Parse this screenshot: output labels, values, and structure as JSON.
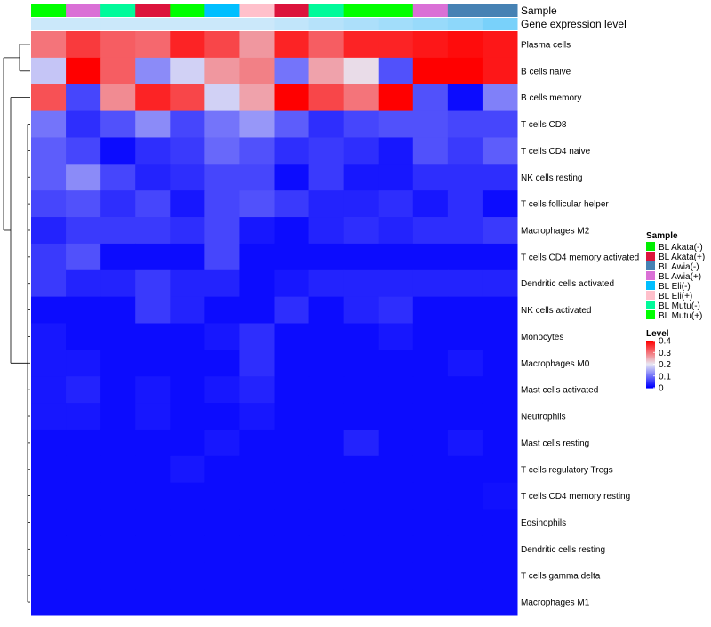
{
  "chart_data": {
    "type": "heatmap",
    "title": "",
    "annotation_labels": {
      "sample": "Sample",
      "gene_expression": "Gene expression level"
    },
    "rows": [
      "Plasma cells",
      "B cells naive",
      "B cells memory",
      "T cells CD8",
      "T cells CD4 naive",
      "NK cells resting",
      "T cells follicular helper",
      "Macrophages M2",
      "T cells CD4 memory activated",
      "Dendritic cells activated",
      "NK cells activated",
      "Monocytes",
      "Macrophages M0",
      "Mast cells activated",
      "Neutrophils",
      "Mast cells resting",
      "T cells regulatory  Tregs",
      "T cells CD4 memory resting",
      "Eosinophils",
      "Dendritic cells resting",
      "T cells gamma delta",
      "Macrophages M1"
    ],
    "columns": [
      "BL Mutu(+)",
      "BL Awia(+)",
      "BL Mutu(-)",
      "BL Akata(+)",
      "BL Mutu(+)",
      "BL Eli(-)",
      "BL Eli(+)",
      "BL Akata(+)",
      "BL Mutu(-)",
      "BL Mutu(+)",
      "BL Mutu(+)",
      "BL Awia(+)",
      "BL Awia(-)",
      "BL Awia(-)"
    ],
    "expression_levels": [
      0.04,
      0.04,
      0.04,
      0.04,
      0.04,
      0.04,
      0.04,
      0.05,
      0.06,
      0.07,
      0.08,
      0.09,
      0.1,
      0.12
    ],
    "values": [
      [
        0.3,
        0.35,
        0.32,
        0.31,
        0.37,
        0.34,
        0.27,
        0.37,
        0.32,
        0.37,
        0.37,
        0.38,
        0.39,
        0.38
      ],
      [
        0.17,
        0.4,
        0.32,
        0.12,
        0.18,
        0.27,
        0.29,
        0.1,
        0.26,
        0.21,
        0.07,
        0.4,
        0.4,
        0.38
      ],
      [
        0.33,
        0.06,
        0.28,
        0.37,
        0.34,
        0.18,
        0.26,
        0.4,
        0.34,
        0.3,
        0.4,
        0.07,
        0.01,
        0.11
      ],
      [
        0.1,
        0.04,
        0.07,
        0.12,
        0.06,
        0.1,
        0.13,
        0.08,
        0.04,
        0.06,
        0.07,
        0.07,
        0.06,
        0.06
      ],
      [
        0.08,
        0.06,
        0.01,
        0.04,
        0.05,
        0.09,
        0.07,
        0.04,
        0.05,
        0.04,
        0.02,
        0.07,
        0.05,
        0.08
      ],
      [
        0.08,
        0.12,
        0.06,
        0.03,
        0.04,
        0.06,
        0.06,
        0.01,
        0.05,
        0.02,
        0.02,
        0.04,
        0.04,
        0.04
      ],
      [
        0.06,
        0.07,
        0.04,
        0.06,
        0.02,
        0.06,
        0.07,
        0.05,
        0.03,
        0.03,
        0.04,
        0.02,
        0.04,
        0.01
      ],
      [
        0.03,
        0.05,
        0.05,
        0.05,
        0.04,
        0.06,
        0.02,
        0.01,
        0.03,
        0.04,
        0.03,
        0.04,
        0.04,
        0.05
      ],
      [
        0.05,
        0.07,
        0.01,
        0.01,
        0.01,
        0.06,
        0.01,
        0.01,
        0.01,
        0.01,
        0.01,
        0.01,
        0.01,
        0.01
      ],
      [
        0.05,
        0.03,
        0.03,
        0.05,
        0.03,
        0.03,
        0.01,
        0.02,
        0.03,
        0.03,
        0.03,
        0.03,
        0.03,
        0.03
      ],
      [
        0.01,
        0.01,
        0.01,
        0.05,
        0.03,
        0.01,
        0.01,
        0.04,
        0.01,
        0.03,
        0.04,
        0.01,
        0.01,
        0.01
      ],
      [
        0.02,
        0.01,
        0.01,
        0.01,
        0.01,
        0.02,
        0.04,
        0.01,
        0.01,
        0.01,
        0.02,
        0.01,
        0.01,
        0.01
      ],
      [
        0.02,
        0.02,
        0.01,
        0.01,
        0.01,
        0.01,
        0.04,
        0.01,
        0.01,
        0.01,
        0.01,
        0.01,
        0.02,
        0.01
      ],
      [
        0.02,
        0.03,
        0.01,
        0.02,
        0.01,
        0.02,
        0.03,
        0.01,
        0.01,
        0.01,
        0.01,
        0.01,
        0.01,
        0.01
      ],
      [
        0.02,
        0.02,
        0.01,
        0.02,
        0.01,
        0.01,
        0.02,
        0.01,
        0.01,
        0.01,
        0.01,
        0.01,
        0.01,
        0.01
      ],
      [
        0.01,
        0.01,
        0.01,
        0.01,
        0.01,
        0.02,
        0.01,
        0.01,
        0.01,
        0.03,
        0.01,
        0.01,
        0.02,
        0.01
      ],
      [
        0.01,
        0.01,
        0.01,
        0.01,
        0.02,
        0.01,
        0.01,
        0.01,
        0.01,
        0.01,
        0.01,
        0.01,
        0.01,
        0.01
      ],
      [
        0.01,
        0.01,
        0.01,
        0.01,
        0.01,
        0.01,
        0.01,
        0.01,
        0.01,
        0.01,
        0.01,
        0.01,
        0.01,
        0.015
      ],
      [
        0.01,
        0.01,
        0.01,
        0.01,
        0.01,
        0.01,
        0.01,
        0.01,
        0.01,
        0.01,
        0.01,
        0.01,
        0.01,
        0.01
      ],
      [
        0.01,
        0.01,
        0.01,
        0.01,
        0.01,
        0.01,
        0.01,
        0.01,
        0.01,
        0.01,
        0.01,
        0.01,
        0.01,
        0.01
      ],
      [
        0.01,
        0.01,
        0.01,
        0.01,
        0.01,
        0.01,
        0.01,
        0.01,
        0.01,
        0.01,
        0.01,
        0.01,
        0.01,
        0.01
      ],
      [
        0.01,
        0.01,
        0.01,
        0.01,
        0.01,
        0.01,
        0.01,
        0.01,
        0.01,
        0.01,
        0.01,
        0.01,
        0.01,
        0.01
      ]
    ],
    "color_scale": {
      "min": 0,
      "max": 0.4,
      "low_color": "#0000ff",
      "mid_color": "#e8e8f4",
      "high_color": "#ff0000",
      "mid_value": 0.2
    },
    "legend_sample": {
      "title": "Sample",
      "entries": [
        {
          "label": "BL Akata(-)",
          "color": "#00ee00"
        },
        {
          "label": "BL Akata(+)",
          "color": "#dc143c"
        },
        {
          "label": "BL Awia(-)",
          "color": "#4682b4"
        },
        {
          "label": "BL Awia(+)",
          "color": "#da70d6"
        },
        {
          "label": "BL Eli(-)",
          "color": "#00bfff"
        },
        {
          "label": "BL Eli(+)",
          "color": "#ffc0cb"
        },
        {
          "label": "BL Mutu(-)",
          "color": "#00fa9a"
        },
        {
          "label": "BL Mutu(+)",
          "color": "#00ff00"
        }
      ]
    },
    "legend_level": {
      "title": "Level",
      "ticks": [
        "0.4",
        "0.3",
        "0.2",
        "0.1",
        "0"
      ],
      "tick_values": [
        0.4,
        0.3,
        0.2,
        0.1,
        0
      ]
    },
    "expression_scale": {
      "min": 0,
      "max": 0.15,
      "low_color": "#f4f4fa",
      "high_color": "#5ac8fa"
    },
    "dendrogram": "row clustering (left)",
    "legend_position": "right"
  }
}
